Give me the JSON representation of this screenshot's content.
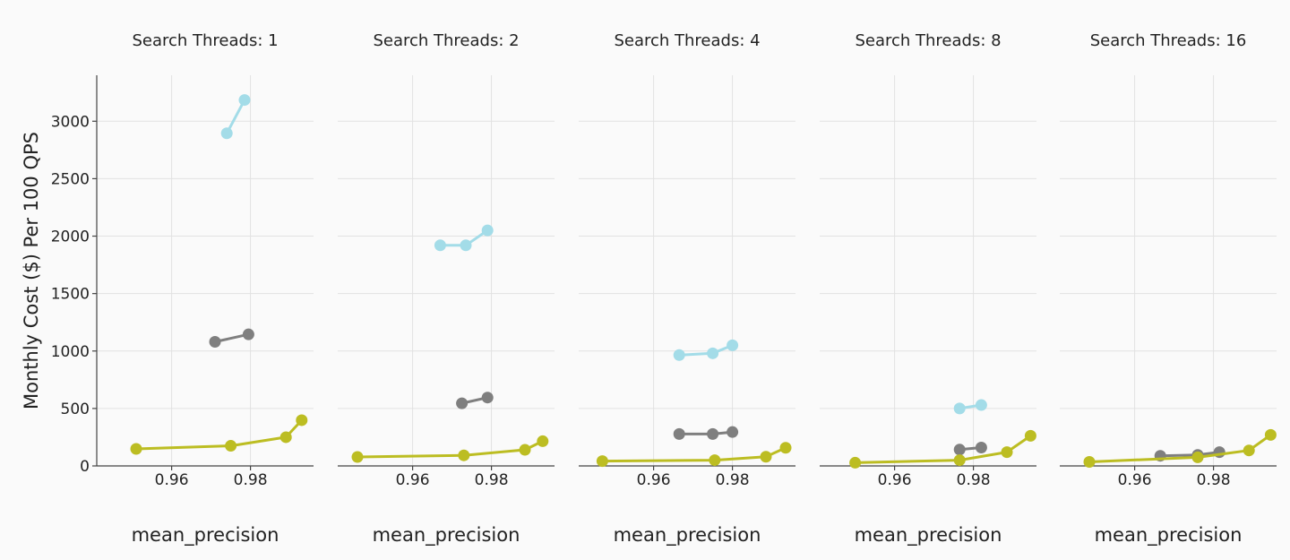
{
  "colors": {
    "background": "#fafafa",
    "grid": "#e2e2e2",
    "axis": "#444444",
    "series": [
      "#a3dce8",
      "#7f7f7f",
      "#bcbd22"
    ]
  },
  "chart_data": {
    "type": "line",
    "ylabel": "Monthly Cost ($) Per 100 QPS",
    "xlabel": "mean_precision",
    "ylim": [
      0,
      3400
    ],
    "xlim": [
      0.941,
      0.996
    ],
    "y_ticks": [
      0,
      500,
      1000,
      1500,
      2000,
      2500,
      3000
    ],
    "y_tick_labels": [
      "0",
      "500",
      "1000",
      "1500",
      "2000",
      "2500",
      "3000"
    ],
    "x_ticks": [
      0.96,
      0.98
    ],
    "x_tick_labels": [
      "0.96",
      "0.98"
    ],
    "grid": true,
    "facets": [
      {
        "title": "Search Threads: 1",
        "series": [
          {
            "color": "#a3dce8",
            "x": [
              0.974,
              0.9785
            ],
            "y": [
              2895,
              3185
            ]
          },
          {
            "color": "#7f7f7f",
            "x": [
              0.971,
              0.9795
            ],
            "y": [
              1080,
              1145
            ]
          },
          {
            "color": "#bcbd22",
            "x": [
              0.951,
              0.975,
              0.989,
              0.993
            ],
            "y": [
              148,
              175,
              250,
              398
            ]
          }
        ]
      },
      {
        "title": "Search Threads: 2",
        "series": [
          {
            "color": "#a3dce8",
            "x": [
              0.967,
              0.9735,
              0.979
            ],
            "y": [
              1920,
              1920,
              2050
            ]
          },
          {
            "color": "#7f7f7f",
            "x": [
              0.9725,
              0.979
            ],
            "y": [
              545,
              595
            ]
          },
          {
            "color": "#bcbd22",
            "x": [
              0.946,
              0.973,
              0.9885,
              0.993
            ],
            "y": [
              78,
              92,
              140,
              215
            ]
          }
        ]
      },
      {
        "title": "Search Threads: 4",
        "series": [
          {
            "color": "#a3dce8",
            "x": [
              0.9665,
              0.975,
              0.98
            ],
            "y": [
              965,
              980,
              1050
            ]
          },
          {
            "color": "#7f7f7f",
            "x": [
              0.9665,
              0.975,
              0.98
            ],
            "y": [
              278,
              278,
              295
            ]
          },
          {
            "color": "#bcbd22",
            "x": [
              0.947,
              0.9755,
              0.9885,
              0.9935
            ],
            "y": [
              42,
              50,
              80,
              158
            ]
          }
        ]
      },
      {
        "title": "Search Threads: 8",
        "series": [
          {
            "color": "#a3dce8",
            "x": [
              0.9765,
              0.982
            ],
            "y": [
              500,
              530
            ]
          },
          {
            "color": "#7f7f7f",
            "x": [
              0.9765,
              0.982
            ],
            "y": [
              142,
              160
            ]
          },
          {
            "color": "#bcbd22",
            "x": [
              0.95,
              0.9765,
              0.9885,
              0.9945
            ],
            "y": [
              28,
              50,
              120,
              262
            ]
          }
        ]
      },
      {
        "title": "Search Threads: 16",
        "series": [
          {
            "color": "#7f7f7f",
            "x": [
              0.9665,
              0.976,
              0.9815
            ],
            "y": [
              88,
              96,
              120
            ]
          },
          {
            "color": "#bcbd22",
            "x": [
              0.9485,
              0.976,
              0.989,
              0.9945
            ],
            "y": [
              35,
              75,
              135,
              270
            ]
          }
        ]
      }
    ]
  }
}
